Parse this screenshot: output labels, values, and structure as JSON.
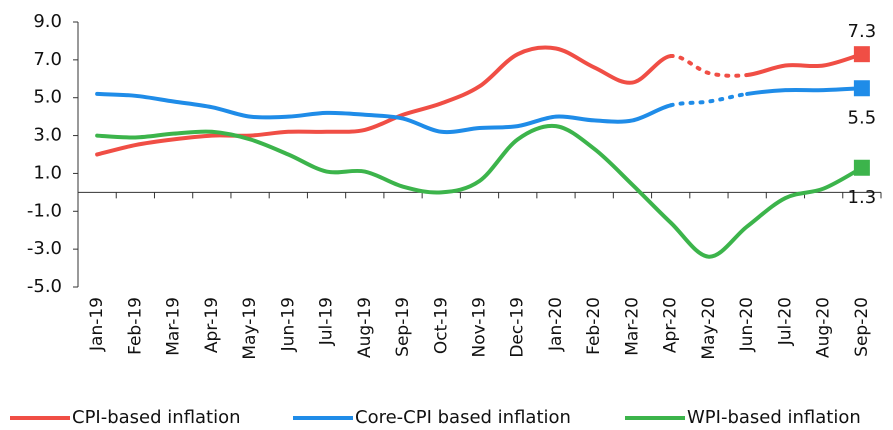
{
  "chart_data": {
    "type": "line",
    "categories": [
      "Jan-19",
      "Feb-19",
      "Mar-19",
      "Apr-19",
      "May-19",
      "Jun-19",
      "Jul-19",
      "Aug-19",
      "Sep-19",
      "Oct-19",
      "Nov-19",
      "Dec-19",
      "Jan-20",
      "Feb-20",
      "Mar-20",
      "Apr-20",
      "May-20",
      "Jun-20",
      "Jul-20",
      "Aug-20",
      "Sep-20"
    ],
    "series": [
      {
        "name": "CPI-based inflation",
        "color": "#f04e45",
        "dotted_segment": [
          15,
          17
        ],
        "end_label_position": "above",
        "values": [
          2.0,
          2.5,
          2.8,
          3.0,
          3.0,
          3.2,
          3.2,
          3.3,
          4.1,
          4.7,
          5.6,
          7.3,
          7.6,
          6.6,
          5.8,
          7.2,
          6.3,
          6.2,
          6.7,
          6.7,
          7.3
        ]
      },
      {
        "name": "Core-CPI based inflation",
        "color": "#1f8ce8",
        "dotted_segment": [
          15,
          17
        ],
        "end_label_position": "below",
        "values": [
          5.2,
          5.1,
          4.8,
          4.5,
          4.0,
          4.0,
          4.2,
          4.1,
          3.9,
          3.2,
          3.4,
          3.5,
          4.0,
          3.8,
          3.8,
          4.6,
          4.8,
          5.2,
          5.4,
          5.4,
          5.5
        ]
      },
      {
        "name": "WPI-based inflation",
        "color": "#3cb44b",
        "end_label_position": "below",
        "values": [
          3.0,
          2.9,
          3.1,
          3.2,
          2.8,
          2.0,
          1.1,
          1.1,
          0.3,
          0.0,
          0.6,
          2.8,
          3.5,
          2.3,
          0.4,
          -1.6,
          -3.4,
          -1.8,
          -0.3,
          0.2,
          1.3
        ]
      }
    ],
    "ylim": [
      -5,
      9
    ],
    "yticks": [
      {
        "value": 9,
        "label": "9.0"
      },
      {
        "value": 7,
        "label": "7.0"
      },
      {
        "value": 5,
        "label": "5.0"
      },
      {
        "value": 3,
        "label": "3.0"
      },
      {
        "value": 1,
        "label": "1.0"
      },
      {
        "value": -1,
        "label": "-1.0"
      },
      {
        "value": -3,
        "label": "-3.0"
      },
      {
        "value": -5,
        "label": "-5.0"
      }
    ],
    "legend": "bottom"
  }
}
